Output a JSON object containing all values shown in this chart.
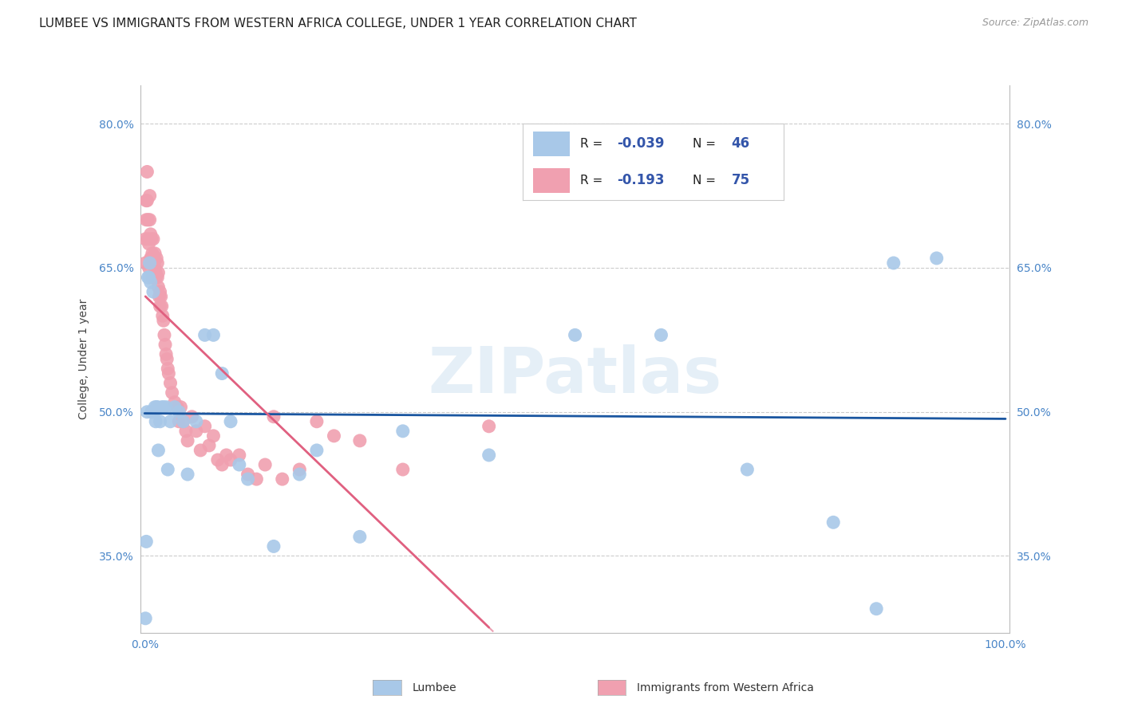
{
  "title": "LUMBEE VS IMMIGRANTS FROM WESTERN AFRICA COLLEGE, UNDER 1 YEAR CORRELATION CHART",
  "source": "Source: ZipAtlas.com",
  "ylabel": "College, Under 1 year",
  "xlabel": "",
  "watermark": "ZIPatlas",
  "lumbee": {
    "label": "Lumbee",
    "R": -0.039,
    "N": 46,
    "color": "#a8c8e8",
    "line_color": "#1a56a0",
    "x": [
      0.001,
      0.002,
      0.003,
      0.004,
      0.005,
      0.006,
      0.007,
      0.008,
      0.009,
      0.01,
      0.011,
      0.012,
      0.013,
      0.014,
      0.015,
      0.016,
      0.018,
      0.02,
      0.022,
      0.025,
      0.027,
      0.03,
      0.035,
      0.04,
      0.045,
      0.05,
      0.06,
      0.07,
      0.08,
      0.09,
      0.1,
      0.11,
      0.12,
      0.15,
      0.18,
      0.2,
      0.25,
      0.3,
      0.4,
      0.5,
      0.6,
      0.7,
      0.8,
      0.85,
      0.87,
      0.92
    ],
    "y": [
      0.285,
      0.365,
      0.5,
      0.64,
      0.64,
      0.655,
      0.635,
      0.5,
      0.5,
      0.625,
      0.5,
      0.505,
      0.49,
      0.505,
      0.505,
      0.46,
      0.49,
      0.505,
      0.505,
      0.505,
      0.44,
      0.49,
      0.505,
      0.5,
      0.49,
      0.435,
      0.49,
      0.58,
      0.58,
      0.54,
      0.49,
      0.445,
      0.43,
      0.36,
      0.435,
      0.46,
      0.37,
      0.48,
      0.455,
      0.58,
      0.58,
      0.44,
      0.385,
      0.295,
      0.655,
      0.66
    ]
  },
  "immigrants": {
    "label": "Immigrants from Western Africa",
    "R": -0.193,
    "N": 75,
    "color": "#f0a0b0",
    "line_color": "#e06080",
    "x": [
      0.001,
      0.001,
      0.002,
      0.002,
      0.003,
      0.003,
      0.004,
      0.004,
      0.005,
      0.005,
      0.006,
      0.006,
      0.007,
      0.007,
      0.008,
      0.008,
      0.009,
      0.009,
      0.01,
      0.01,
      0.011,
      0.011,
      0.012,
      0.012,
      0.013,
      0.013,
      0.014,
      0.015,
      0.015,
      0.016,
      0.016,
      0.017,
      0.018,
      0.018,
      0.019,
      0.02,
      0.021,
      0.022,
      0.023,
      0.024,
      0.025,
      0.026,
      0.027,
      0.028,
      0.03,
      0.032,
      0.035,
      0.038,
      0.04,
      0.042,
      0.045,
      0.048,
      0.05,
      0.055,
      0.06,
      0.065,
      0.07,
      0.075,
      0.08,
      0.085,
      0.09,
      0.095,
      0.1,
      0.11,
      0.12,
      0.13,
      0.14,
      0.15,
      0.16,
      0.18,
      0.2,
      0.22,
      0.25,
      0.3,
      0.4
    ],
    "y": [
      0.68,
      0.655,
      0.72,
      0.7,
      0.75,
      0.72,
      0.7,
      0.68,
      0.675,
      0.65,
      0.725,
      0.7,
      0.685,
      0.66,
      0.68,
      0.66,
      0.665,
      0.64,
      0.68,
      0.66,
      0.655,
      0.64,
      0.665,
      0.65,
      0.645,
      0.64,
      0.66,
      0.655,
      0.64,
      0.645,
      0.63,
      0.62,
      0.625,
      0.61,
      0.62,
      0.61,
      0.6,
      0.595,
      0.58,
      0.57,
      0.56,
      0.555,
      0.545,
      0.54,
      0.53,
      0.52,
      0.51,
      0.505,
      0.49,
      0.505,
      0.49,
      0.48,
      0.47,
      0.495,
      0.48,
      0.46,
      0.485,
      0.465,
      0.475,
      0.45,
      0.445,
      0.455,
      0.45,
      0.455,
      0.435,
      0.43,
      0.445,
      0.495,
      0.43,
      0.44,
      0.49,
      0.475,
      0.47,
      0.44,
      0.485
    ]
  },
  "xlim": [
    -0.005,
    1.005
  ],
  "ylim": [
    0.27,
    0.84
  ],
  "yticks": [
    0.35,
    0.5,
    0.65,
    0.8
  ],
  "ytick_labels": [
    "35.0%",
    "50.0%",
    "65.0%",
    "80.0%"
  ],
  "xticks": [
    0.0,
    0.2,
    0.4,
    0.6,
    0.8,
    1.0
  ],
  "xtick_labels": [
    "0.0%",
    "",
    "",
    "",
    "",
    "100.0%"
  ],
  "grid_color": "#cccccc",
  "background_color": "#ffffff",
  "title_fontsize": 11,
  "axis_label_fontsize": 10,
  "tick_fontsize": 10,
  "legend_R_color": "#3355aa",
  "legend_N_color": "#3355aa",
  "legend_label_color": "#222222"
}
